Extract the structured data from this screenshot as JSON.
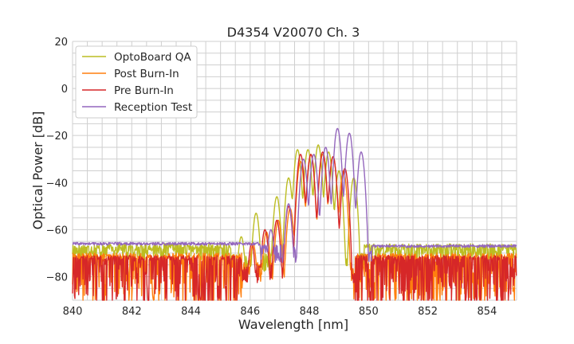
{
  "chart_data": {
    "type": "line",
    "title": "D4354 V20070 Ch. 3",
    "xlabel": "Wavelength [nm]",
    "ylabel": "Optical Power [dB]",
    "xlim": [
      840,
      855
    ],
    "ylim": [
      -90,
      20
    ],
    "xticks": [
      840,
      842,
      844,
      846,
      848,
      850,
      852,
      854
    ],
    "yticks": [
      20,
      0,
      -20,
      -40,
      -60,
      -80
    ],
    "ytick_labels": [
      "20",
      "0",
      "−20",
      "−40",
      "−60",
      "−80"
    ],
    "grid": true,
    "legend_position": "top-left",
    "series": [
      {
        "name": "OptoBoard QA",
        "color": "#bcbd22",
        "peaks": [
          [
            845.7,
            -63
          ],
          [
            846.2,
            -53
          ],
          [
            846.9,
            -46
          ],
          [
            847.3,
            -38
          ],
          [
            847.6,
            -26
          ],
          [
            847.95,
            -26
          ],
          [
            848.3,
            -24
          ],
          [
            848.65,
            -27
          ],
          [
            849.0,
            -35
          ],
          [
            849.5,
            -38
          ]
        ],
        "baseline_left": -70,
        "baseline_right": -69,
        "noise": {
          "level": -68,
          "depth": 5
        }
      },
      {
        "name": "Post Burn-In",
        "color": "#ff7f0e",
        "peaks": [
          [
            846.1,
            -66
          ],
          [
            846.55,
            -61
          ],
          [
            846.95,
            -56
          ],
          [
            847.35,
            -51
          ],
          [
            847.7,
            -31
          ],
          [
            848.05,
            -28
          ],
          [
            848.45,
            -28
          ],
          [
            848.8,
            -29
          ],
          [
            849.15,
            -35
          ]
        ],
        "baseline_left": -74,
        "baseline_right": -74,
        "noise": {
          "level": -72,
          "depth": 20
        }
      },
      {
        "name": "Pre Burn-In",
        "color": "#d62728",
        "peaks": [
          [
            846.05,
            -66
          ],
          [
            846.5,
            -60
          ],
          [
            846.9,
            -56
          ],
          [
            847.3,
            -50
          ],
          [
            847.7,
            -28
          ],
          [
            848.05,
            -28
          ],
          [
            848.45,
            -27
          ],
          [
            848.8,
            -29
          ],
          [
            849.2,
            -34
          ]
        ],
        "baseline_left": -75,
        "baseline_right": -75,
        "noise": {
          "level": -73,
          "depth": 22
        }
      },
      {
        "name": "Reception Test",
        "color": "#9467bd",
        "peaks": [
          [
            846.7,
            -60
          ],
          [
            847.3,
            -49
          ],
          [
            847.8,
            -30
          ],
          [
            848.15,
            -28
          ],
          [
            848.55,
            -25
          ],
          [
            848.95,
            -17
          ],
          [
            849.35,
            -19
          ],
          [
            849.75,
            -27
          ]
        ],
        "baseline_left": -66,
        "baseline_right": -67,
        "noise": {
          "level": -66,
          "depth": 1
        }
      }
    ]
  }
}
